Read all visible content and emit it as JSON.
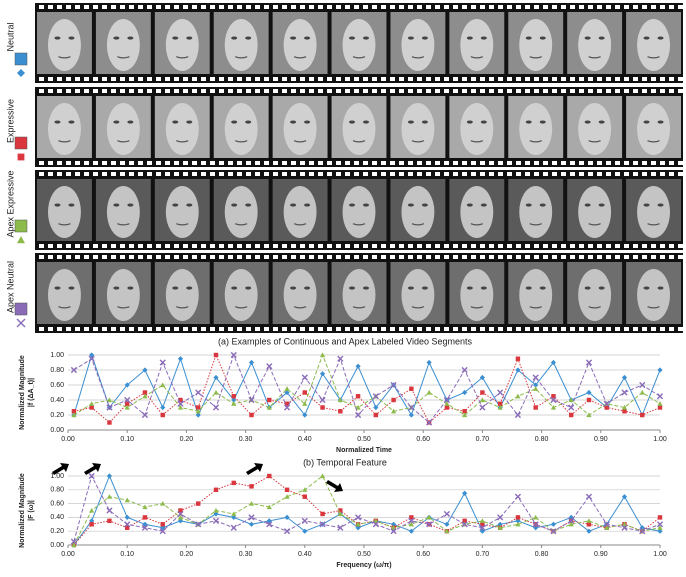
{
  "panel_a": {
    "rows": [
      {
        "label": "Neutral",
        "color": "#3b8fd1",
        "marker": "diamond"
      },
      {
        "label": "Expressive",
        "color": "#d9363e",
        "marker": "square"
      },
      {
        "label": "Apex Expressive",
        "color": "#8dbb4b",
        "marker": "triangle"
      },
      {
        "label": "Apex Neutral",
        "color": "#8a6bb8",
        "marker": "x"
      }
    ],
    "caption": "(a) Examples of Continuous and Apex Labeled Video Segments"
  },
  "chart_data": [
    {
      "type": "line",
      "caption": "(b) Temporal Feature",
      "xlabel": "Normalized Time",
      "ylabel": [
        "Normalized Magnitude",
        "|f (ΔA_t)|"
      ],
      "grid": true,
      "x": [
        0.01,
        0.04,
        0.07,
        0.1,
        0.13,
        0.16,
        0.19,
        0.22,
        0.25,
        0.28,
        0.31,
        0.34,
        0.37,
        0.4,
        0.43,
        0.46,
        0.49,
        0.52,
        0.55,
        0.58,
        0.61,
        0.64,
        0.67,
        0.7,
        0.73,
        0.76,
        0.79,
        0.82,
        0.85,
        0.88,
        0.91,
        0.94,
        0.97,
        1.0
      ],
      "series": [
        {
          "color": "#3b8fd1",
          "marker": "diamond",
          "line_style": "solid",
          "values": [
            0.2,
            1.0,
            0.3,
            0.6,
            0.8,
            0.3,
            0.95,
            0.2,
            0.7,
            0.4,
            0.9,
            0.3,
            0.5,
            0.2,
            0.75,
            0.4,
            0.85,
            0.3,
            0.6,
            0.2,
            0.9,
            0.4,
            0.5,
            0.7,
            0.3,
            0.8,
            0.6,
            0.9,
            0.4,
            0.5,
            0.3,
            0.7,
            0.2,
            0.8
          ]
        },
        {
          "color": "#d9363e",
          "marker": "square",
          "line_style": "dotted",
          "values": [
            0.25,
            0.3,
            0.1,
            0.35,
            0.5,
            0.2,
            0.4,
            0.3,
            1.0,
            0.45,
            0.2,
            0.4,
            0.35,
            0.5,
            0.3,
            0.25,
            0.45,
            0.2,
            0.4,
            0.55,
            0.1,
            0.3,
            0.25,
            0.5,
            0.35,
            0.95,
            0.3,
            0.45,
            0.2,
            0.4,
            0.3,
            0.25,
            0.2,
            0.3
          ]
        },
        {
          "color": "#8dbb4b",
          "marker": "triangle",
          "line_style": "dashed",
          "values": [
            0.2,
            0.35,
            0.4,
            0.3,
            0.45,
            0.6,
            0.3,
            0.25,
            0.5,
            0.35,
            0.4,
            0.3,
            0.55,
            0.35,
            1.0,
            0.4,
            0.3,
            0.45,
            0.25,
            0.3,
            0.5,
            0.35,
            0.2,
            0.4,
            0.3,
            0.45,
            0.55,
            0.3,
            0.4,
            0.2,
            0.35,
            0.3,
            0.5,
            0.35
          ]
        },
        {
          "color": "#8a6bb8",
          "marker": "x",
          "line_style": "dashed",
          "values": [
            0.8,
            0.95,
            0.3,
            0.4,
            0.2,
            0.9,
            0.35,
            0.5,
            0.3,
            1.0,
            0.4,
            0.85,
            0.3,
            0.7,
            0.4,
            0.95,
            0.2,
            0.45,
            0.6,
            0.3,
            0.1,
            0.4,
            0.8,
            0.3,
            0.5,
            0.2,
            0.7,
            0.4,
            0.3,
            0.9,
            0.35,
            0.5,
            0.6,
            0.45
          ]
        }
      ],
      "xlim": [
        0,
        1
      ],
      "ylim": [
        0,
        1
      ],
      "xticks": [
        {
          "value": 0,
          "label": "0.00"
        },
        {
          "value": 0.1,
          "label": "0.10"
        },
        {
          "value": 0.2,
          "label": "0.20"
        },
        {
          "value": 0.3,
          "label": "0.30"
        },
        {
          "value": 0.4,
          "label": "0.40"
        },
        {
          "value": 0.5,
          "label": "0.50"
        },
        {
          "value": 0.6,
          "label": "0.60"
        },
        {
          "value": 0.7,
          "label": "0.70"
        },
        {
          "value": 0.8,
          "label": "0.80"
        },
        {
          "value": 0.9,
          "label": "0.90"
        },
        {
          "value": 1,
          "label": "1.00"
        }
      ],
      "yticks": [
        {
          "value": 0,
          "label": "0.00"
        },
        {
          "value": 0.2,
          "label": "0.20"
        },
        {
          "value": 0.4,
          "label": "0.40"
        },
        {
          "value": 0.6,
          "label": "0.60"
        },
        {
          "value": 0.8,
          "label": "0.80"
        },
        {
          "value": 1,
          "label": "1.00"
        }
      ]
    },
    {
      "type": "line",
      "xlabel": "Frequency (ω/π)",
      "ylabel": [
        "Normalized Magnitude",
        "|F (ω)|"
      ],
      "grid": true,
      "x": [
        0.01,
        0.04,
        0.07,
        0.1,
        0.13,
        0.16,
        0.19,
        0.22,
        0.25,
        0.28,
        0.31,
        0.34,
        0.37,
        0.4,
        0.43,
        0.46,
        0.49,
        0.52,
        0.55,
        0.58,
        0.61,
        0.64,
        0.67,
        0.7,
        0.73,
        0.76,
        0.79,
        0.82,
        0.85,
        0.88,
        0.91,
        0.94,
        0.97,
        1.0
      ],
      "series": [
        {
          "color": "#3b8fd1",
          "marker": "diamond",
          "line_style": "solid",
          "values": [
            0,
            0.35,
            1.0,
            0.4,
            0.3,
            0.25,
            0.35,
            0.3,
            0.45,
            0.4,
            0.3,
            0.35,
            0.4,
            0.2,
            0.3,
            0.45,
            0.25,
            0.35,
            0.3,
            0.2,
            0.4,
            0.3,
            0.75,
            0.2,
            0.3,
            0.35,
            0.25,
            0.3,
            0.4,
            0.2,
            0.3,
            0.7,
            0.25,
            0.2
          ]
        },
        {
          "color": "#d9363e",
          "marker": "square",
          "line_style": "dotted",
          "values": [
            0,
            0.3,
            0.35,
            0.25,
            0.4,
            0.3,
            0.5,
            0.6,
            0.8,
            0.9,
            0.85,
            1.0,
            0.8,
            0.7,
            0.45,
            0.5,
            0.3,
            0.35,
            0.25,
            0.4,
            0.3,
            0.2,
            0.35,
            0.3,
            0.25,
            0.4,
            0.3,
            0.2,
            0.35,
            0.3,
            0.25,
            0.3,
            0.2,
            0.4
          ]
        },
        {
          "color": "#8dbb4b",
          "marker": "triangle",
          "line_style": "dashed",
          "values": [
            0,
            0.5,
            0.7,
            0.65,
            0.55,
            0.6,
            0.4,
            0.3,
            0.5,
            0.45,
            0.6,
            0.55,
            0.7,
            0.8,
            1.0,
            0.45,
            0.3,
            0.35,
            0.25,
            0.3,
            0.4,
            0.2,
            0.3,
            0.35,
            0.25,
            0.3,
            0.4,
            0.2,
            0.3,
            0.35,
            0.25,
            0.3,
            0.2,
            0.25
          ]
        },
        {
          "color": "#8a6bb8",
          "marker": "x",
          "line_style": "dashed",
          "values": [
            0.05,
            1.0,
            0.5,
            0.3,
            0.25,
            0.2,
            0.45,
            0.3,
            0.35,
            0.25,
            0.4,
            0.3,
            0.2,
            0.35,
            0.3,
            0.25,
            0.4,
            0.3,
            0.2,
            0.35,
            0.3,
            0.45,
            0.3,
            0.25,
            0.4,
            0.7,
            0.3,
            0.2,
            0.35,
            0.7,
            0.3,
            0.25,
            0.2,
            0.3
          ]
        }
      ],
      "xlim": [
        0,
        1
      ],
      "ylim": [
        0,
        1
      ],
      "xticks": [
        {
          "value": 0,
          "label": "0.00"
        },
        {
          "value": 0.1,
          "label": "0.10"
        },
        {
          "value": 0.2,
          "label": "0.20"
        },
        {
          "value": 0.3,
          "label": "0.30"
        },
        {
          "value": 0.4,
          "label": "0.40"
        },
        {
          "value": 0.5,
          "label": "0.50"
        },
        {
          "value": 0.6,
          "label": "0.60"
        },
        {
          "value": 0.7,
          "label": "0.70"
        },
        {
          "value": 0.8,
          "label": "0.80"
        },
        {
          "value": 0.9,
          "label": "0.90"
        },
        {
          "value": 1,
          "label": "1.00"
        }
      ],
      "yticks": [
        {
          "value": 0,
          "label": "0.00"
        },
        {
          "value": 0.2,
          "label": "0.20"
        },
        {
          "value": 0.4,
          "label": "0.40"
        },
        {
          "value": 0.6,
          "label": "0.60"
        },
        {
          "value": 0.8,
          "label": "0.80"
        },
        {
          "value": 1,
          "label": "1.00"
        }
      ]
    }
  ]
}
